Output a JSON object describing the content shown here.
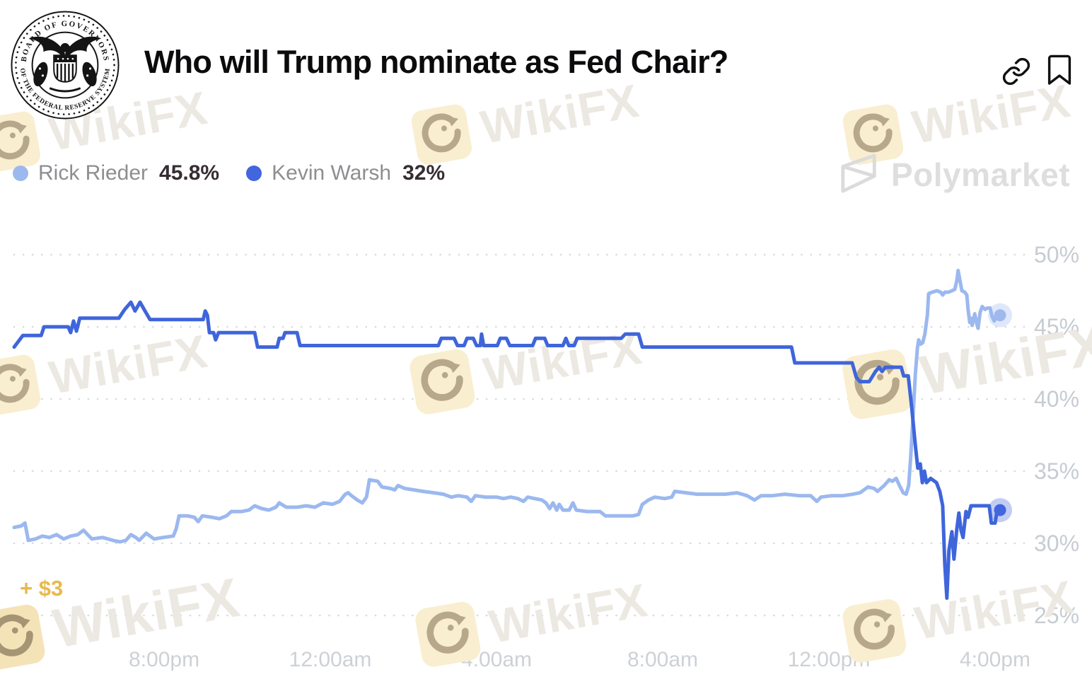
{
  "header": {
    "title": "Who will Trump nominate as Fed Chair?",
    "seal": {
      "text_top": "BOARD OF GOVERNORS",
      "text_bottom": "OF THE FEDERAL RESERVE SYSTEM"
    },
    "icons": {
      "link": "link-icon",
      "bookmark": "bookmark-icon"
    }
  },
  "legend": [
    {
      "name": "Rick Rieder",
      "value": "45.8%",
      "color": "#9BB8EF"
    },
    {
      "name": "Kevin Warsh",
      "value": "32%",
      "color": "#4366DE"
    }
  ],
  "pnl_label": "+ $3",
  "pnl_color": "#E8B94C",
  "watermarks": {
    "wikifx_label": "WikiFX",
    "polymarket_label": "Polymarket"
  },
  "chart_data": {
    "type": "line",
    "title": "Who will Trump nominate as Fed Chair?",
    "x_unit": "hours relative to the 8:00pm tick",
    "x_domain": [
      -3.61,
      20.12
    ],
    "x_ticks": [
      {
        "h": 0,
        "label": "8:00pm"
      },
      {
        "h": 4,
        "label": "12:00am"
      },
      {
        "h": 8,
        "label": "4:00am"
      },
      {
        "h": 12,
        "label": "8:00am"
      },
      {
        "h": 16,
        "label": "12:00pm"
      },
      {
        "h": 20,
        "label": "4:00pm"
      }
    ],
    "y_domain": [
      25,
      50
    ],
    "y_ticks": [
      50,
      45,
      40,
      35,
      30,
      25
    ],
    "ylabel_suffix": "%",
    "grid": "dotted horizontal lines, labels on right",
    "legend_position": "top-left",
    "series": [
      {
        "id": "rick-rieder",
        "name": "Rick Rieder",
        "current": "45.8%",
        "color": "#9BB8EF",
        "dot_color": "#9FB9EE",
        "points": [
          [
            -3.61,
            31.1
          ],
          [
            -3.44,
            31.2
          ],
          [
            -3.35,
            31.4
          ],
          [
            -3.27,
            30.2
          ],
          [
            -3.1,
            30.3
          ],
          [
            -2.93,
            30.5
          ],
          [
            -2.76,
            30.4
          ],
          [
            -2.59,
            30.6
          ],
          [
            -2.42,
            30.3
          ],
          [
            -2.25,
            30.5
          ],
          [
            -2.08,
            30.6
          ],
          [
            -1.94,
            30.9
          ],
          [
            -1.84,
            30.6
          ],
          [
            -1.74,
            30.3
          ],
          [
            -1.48,
            30.4
          ],
          [
            -1.23,
            30.2
          ],
          [
            -1.06,
            30.1
          ],
          [
            -0.92,
            30.2
          ],
          [
            -0.8,
            30.6
          ],
          [
            -0.68,
            30.4
          ],
          [
            -0.6,
            30.2
          ],
          [
            -0.43,
            30.7
          ],
          [
            -0.34,
            30.5
          ],
          [
            -0.24,
            30.3
          ],
          [
            -0.03,
            30.4
          ],
          [
            0.22,
            30.5
          ],
          [
            0.29,
            31.0
          ],
          [
            0.36,
            31.9
          ],
          [
            0.56,
            31.9
          ],
          [
            0.73,
            31.8
          ],
          [
            0.82,
            31.5
          ],
          [
            0.92,
            31.9
          ],
          [
            1.16,
            31.8
          ],
          [
            1.33,
            31.7
          ],
          [
            1.5,
            31.9
          ],
          [
            1.62,
            32.2
          ],
          [
            1.87,
            32.2
          ],
          [
            2.04,
            32.3
          ],
          [
            2.18,
            32.6
          ],
          [
            2.35,
            32.4
          ],
          [
            2.52,
            32.3
          ],
          [
            2.69,
            32.5
          ],
          [
            2.77,
            32.8
          ],
          [
            2.94,
            32.5
          ],
          [
            3.2,
            32.5
          ],
          [
            3.42,
            32.6
          ],
          [
            3.63,
            32.5
          ],
          [
            3.83,
            32.8
          ],
          [
            4.05,
            32.7
          ],
          [
            4.22,
            32.9
          ],
          [
            4.36,
            33.4
          ],
          [
            4.43,
            33.5
          ],
          [
            4.51,
            33.3
          ],
          [
            4.65,
            33.0
          ],
          [
            4.77,
            32.8
          ],
          [
            4.87,
            33.2
          ],
          [
            4.94,
            34.4
          ],
          [
            5.14,
            34.3
          ],
          [
            5.24,
            33.9
          ],
          [
            5.45,
            33.8
          ],
          [
            5.55,
            33.7
          ],
          [
            5.63,
            34.0
          ],
          [
            5.79,
            33.8
          ],
          [
            6.01,
            33.7
          ],
          [
            6.23,
            33.6
          ],
          [
            6.49,
            33.5
          ],
          [
            6.72,
            33.4
          ],
          [
            6.91,
            33.2
          ],
          [
            7.08,
            33.3
          ],
          [
            7.29,
            33.2
          ],
          [
            7.39,
            32.9
          ],
          [
            7.49,
            33.3
          ],
          [
            7.73,
            33.2
          ],
          [
            8.0,
            33.2
          ],
          [
            8.17,
            33.1
          ],
          [
            8.34,
            33.2
          ],
          [
            8.51,
            33.1
          ],
          [
            8.65,
            32.9
          ],
          [
            8.75,
            33.2
          ],
          [
            8.92,
            33.1
          ],
          [
            9.09,
            33.0
          ],
          [
            9.19,
            32.8
          ],
          [
            9.28,
            32.4
          ],
          [
            9.36,
            32.8
          ],
          [
            9.45,
            32.3
          ],
          [
            9.51,
            32.7
          ],
          [
            9.6,
            32.3
          ],
          [
            9.75,
            32.3
          ],
          [
            9.84,
            32.8
          ],
          [
            9.92,
            32.3
          ],
          [
            10.18,
            32.2
          ],
          [
            10.49,
            32.2
          ],
          [
            10.62,
            31.9
          ],
          [
            11.29,
            31.9
          ],
          [
            11.42,
            32.0
          ],
          [
            11.51,
            32.7
          ],
          [
            11.66,
            33.0
          ],
          [
            11.81,
            33.2
          ],
          [
            12.05,
            33.1
          ],
          [
            12.22,
            33.2
          ],
          [
            12.29,
            33.6
          ],
          [
            12.56,
            33.5
          ],
          [
            12.83,
            33.4
          ],
          [
            13.16,
            33.4
          ],
          [
            13.5,
            33.4
          ],
          [
            13.79,
            33.5
          ],
          [
            14.03,
            33.3
          ],
          [
            14.21,
            33.0
          ],
          [
            14.37,
            33.3
          ],
          [
            14.64,
            33.3
          ],
          [
            14.94,
            33.4
          ],
          [
            15.29,
            33.3
          ],
          [
            15.56,
            33.3
          ],
          [
            15.71,
            32.9
          ],
          [
            15.81,
            33.2
          ],
          [
            16.07,
            33.3
          ],
          [
            16.34,
            33.3
          ],
          [
            16.58,
            33.4
          ],
          [
            16.75,
            33.5
          ],
          [
            16.94,
            33.9
          ],
          [
            17.09,
            33.8
          ],
          [
            17.17,
            33.6
          ],
          [
            17.33,
            34.0
          ],
          [
            17.45,
            34.4
          ],
          [
            17.53,
            34.3
          ],
          [
            17.62,
            34.5
          ],
          [
            17.7,
            34.0
          ],
          [
            17.79,
            33.5
          ],
          [
            17.86,
            33.4
          ],
          [
            17.92,
            34.0
          ],
          [
            17.97,
            36.0
          ],
          [
            18.03,
            39.0
          ],
          [
            18.08,
            41.7
          ],
          [
            18.13,
            43.5
          ],
          [
            18.16,
            44.1
          ],
          [
            18.21,
            43.8
          ],
          [
            18.26,
            43.9
          ],
          [
            18.31,
            44.5
          ],
          [
            18.37,
            45.8
          ],
          [
            18.4,
            47.3
          ],
          [
            18.49,
            47.4
          ],
          [
            18.6,
            47.5
          ],
          [
            18.69,
            47.4
          ],
          [
            18.74,
            47.2
          ],
          [
            18.79,
            47.4
          ],
          [
            18.88,
            47.4
          ],
          [
            18.96,
            47.5
          ],
          [
            19.03,
            47.6
          ],
          [
            19.08,
            48.2
          ],
          [
            19.11,
            48.9
          ],
          [
            19.15,
            48.3
          ],
          [
            19.2,
            47.5
          ],
          [
            19.27,
            47.4
          ],
          [
            19.32,
            47.2
          ],
          [
            19.35,
            46.2
          ],
          [
            19.39,
            45.3
          ],
          [
            19.42,
            45.6
          ],
          [
            19.45,
            45.1
          ],
          [
            19.51,
            45.9
          ],
          [
            19.56,
            45.2
          ],
          [
            19.59,
            44.9
          ],
          [
            19.64,
            46.0
          ],
          [
            19.69,
            46.4
          ],
          [
            19.76,
            46.2
          ],
          [
            19.81,
            46.3
          ],
          [
            19.88,
            46.3
          ],
          [
            19.93,
            45.7
          ],
          [
            19.98,
            45.4
          ],
          [
            20.03,
            45.8
          ],
          [
            20.08,
            46.0
          ],
          [
            20.12,
            45.8
          ]
        ]
      },
      {
        "id": "kevin-warsh",
        "name": "Kevin Warsh",
        "current": "32%",
        "color": "#3F65DB",
        "dot_color": "#4366DE",
        "points": [
          [
            -3.61,
            43.6
          ],
          [
            -3.4,
            44.4
          ],
          [
            -2.96,
            44.4
          ],
          [
            -2.89,
            45.0
          ],
          [
            -2.31,
            45.0
          ],
          [
            -2.25,
            44.6
          ],
          [
            -2.18,
            45.4
          ],
          [
            -2.11,
            44.7
          ],
          [
            -2.03,
            45.6
          ],
          [
            -1.09,
            45.6
          ],
          [
            -0.95,
            46.2
          ],
          [
            -0.8,
            46.7
          ],
          [
            -0.7,
            46.1
          ],
          [
            -0.58,
            46.7
          ],
          [
            -0.44,
            46.0
          ],
          [
            -0.34,
            45.5
          ],
          [
            0.94,
            45.5
          ],
          [
            0.99,
            46.1
          ],
          [
            1.04,
            45.8
          ],
          [
            1.09,
            44.6
          ],
          [
            1.19,
            44.6
          ],
          [
            1.24,
            44.1
          ],
          [
            1.31,
            44.6
          ],
          [
            2.18,
            44.6
          ],
          [
            2.25,
            43.6
          ],
          [
            2.72,
            43.6
          ],
          [
            2.77,
            44.2
          ],
          [
            2.86,
            44.2
          ],
          [
            2.91,
            44.6
          ],
          [
            3.2,
            44.6
          ],
          [
            3.27,
            43.7
          ],
          [
            6.6,
            43.7
          ],
          [
            6.67,
            44.2
          ],
          [
            6.98,
            44.2
          ],
          [
            7.06,
            43.7
          ],
          [
            7.22,
            43.7
          ],
          [
            7.29,
            44.2
          ],
          [
            7.44,
            44.2
          ],
          [
            7.52,
            43.7
          ],
          [
            7.61,
            43.7
          ],
          [
            7.64,
            44.5
          ],
          [
            7.69,
            43.7
          ],
          [
            8.02,
            43.7
          ],
          [
            8.09,
            44.2
          ],
          [
            8.24,
            44.2
          ],
          [
            8.32,
            43.7
          ],
          [
            8.87,
            43.7
          ],
          [
            8.94,
            44.2
          ],
          [
            9.16,
            44.2
          ],
          [
            9.23,
            43.7
          ],
          [
            9.6,
            43.7
          ],
          [
            9.67,
            44.2
          ],
          [
            9.74,
            43.7
          ],
          [
            9.87,
            43.7
          ],
          [
            9.94,
            44.2
          ],
          [
            11.0,
            44.2
          ],
          [
            11.1,
            44.5
          ],
          [
            11.42,
            44.5
          ],
          [
            11.51,
            43.6
          ],
          [
            15.1,
            43.6
          ],
          [
            15.18,
            42.5
          ],
          [
            16.56,
            42.5
          ],
          [
            16.66,
            41.5
          ],
          [
            16.75,
            41.2
          ],
          [
            16.97,
            41.2
          ],
          [
            17.12,
            41.9
          ],
          [
            17.21,
            42.2
          ],
          [
            17.28,
            41.9
          ],
          [
            17.36,
            42.2
          ],
          [
            17.74,
            42.2
          ],
          [
            17.8,
            41.6
          ],
          [
            17.91,
            41.6
          ],
          [
            17.99,
            39.5
          ],
          [
            18.08,
            36.8
          ],
          [
            18.14,
            35.2
          ],
          [
            18.2,
            35.5
          ],
          [
            18.25,
            34.2
          ],
          [
            18.3,
            35.0
          ],
          [
            18.35,
            34.2
          ],
          [
            18.45,
            34.5
          ],
          [
            18.59,
            34.2
          ],
          [
            18.67,
            33.6
          ],
          [
            18.74,
            32.6
          ],
          [
            18.79,
            28.5
          ],
          [
            18.84,
            26.2
          ],
          [
            18.89,
            29.5
          ],
          [
            18.96,
            30.8
          ],
          [
            19.01,
            28.9
          ],
          [
            19.08,
            31.0
          ],
          [
            19.13,
            32.1
          ],
          [
            19.18,
            30.9
          ],
          [
            19.23,
            30.4
          ],
          [
            19.3,
            32.2
          ],
          [
            19.35,
            31.8
          ],
          [
            19.42,
            32.6
          ],
          [
            19.86,
            32.6
          ],
          [
            19.91,
            31.4
          ],
          [
            20.0,
            31.4
          ],
          [
            20.05,
            32.3
          ],
          [
            20.12,
            32.3
          ]
        ]
      }
    ]
  }
}
